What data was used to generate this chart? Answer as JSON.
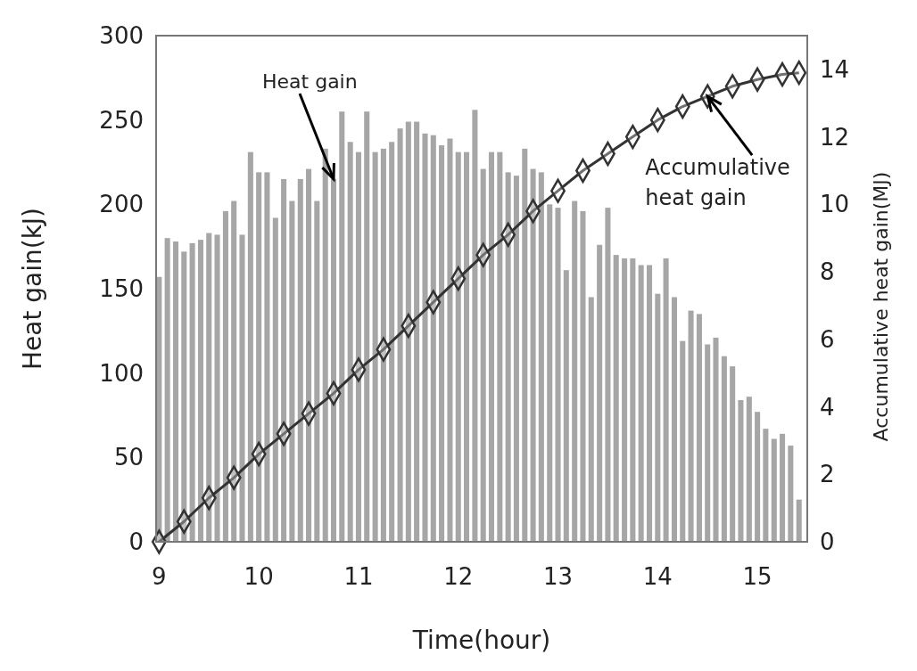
{
  "chart_data": {
    "type": "bar",
    "xlabel": "Time(hour)",
    "ylabel": "Heat gain(kJ)",
    "y2label": "Accumulative heat gain(MJ)",
    "xlim": [
      8.97,
      15.5
    ],
    "xticks": [
      9,
      10,
      11,
      12,
      13,
      14,
      15
    ],
    "ylim": [
      0,
      300
    ],
    "yticks": [
      0,
      50,
      100,
      150,
      200,
      250,
      300
    ],
    "y2lim": [
      0,
      15
    ],
    "y2ticks": [
      0,
      2,
      4,
      6,
      8,
      10,
      12,
      14
    ],
    "grid": false,
    "annotations": [
      {
        "text": "Heat gain",
        "x": 10.75,
        "y": 215
      },
      {
        "text": "Accumulative heat gain",
        "x": 14.5,
        "y": 264
      }
    ],
    "series": [
      {
        "color": "#a6a6a6",
        "x": [
          9,
          9.083,
          9.167,
          9.25,
          9.333,
          9.417,
          9.5,
          9.583,
          9.667,
          9.75,
          9.833,
          9.917,
          10,
          10.083,
          10.167,
          10.25,
          10.333,
          10.417,
          10.5,
          10.583,
          10.667,
          10.75,
          10.833,
          10.917,
          11,
          11.083,
          11.167,
          11.25,
          11.333,
          11.417,
          11.5,
          11.583,
          11.667,
          11.75,
          11.833,
          11.917,
          12,
          12.083,
          12.167,
          12.25,
          12.333,
          12.417,
          12.5,
          12.583,
          12.667,
          12.75,
          12.833,
          12.917,
          13,
          13.083,
          13.167,
          13.25,
          13.333,
          13.417,
          13.5,
          13.583,
          13.667,
          13.75,
          13.833,
          13.917,
          14,
          14.083,
          14.167,
          14.25,
          14.333,
          14.417,
          14.5,
          14.583,
          14.667,
          14.75,
          14.833,
          14.917,
          15,
          15.083,
          15.167,
          15.25,
          15.333,
          15.417
        ],
        "values": [
          157,
          180,
          178,
          172,
          177,
          179,
          183,
          182,
          196,
          202,
          182,
          231,
          219,
          219,
          192,
          215,
          202,
          215,
          221,
          202,
          233,
          215,
          255,
          237,
          231,
          255,
          231,
          233,
          237,
          245,
          249,
          249,
          242,
          241,
          235,
          239,
          231,
          231,
          256,
          221,
          231,
          231,
          219,
          217,
          233,
          221,
          219,
          200,
          198,
          161,
          202,
          196,
          145,
          176,
          198,
          170,
          168,
          168,
          164,
          164,
          147,
          168,
          145,
          119,
          137,
          135,
          117,
          121,
          110,
          104,
          84,
          86,
          77,
          67,
          61,
          64,
          57,
          25
        ]
      },
      {
        "type": "line",
        "axis": "y2",
        "color": "#333333",
        "marker": "diamond",
        "line_style": "solid",
        "x": [
          9,
          9.25,
          9.5,
          9.75,
          10,
          10.25,
          10.5,
          10.75,
          11,
          11.25,
          11.5,
          11.75,
          12,
          12.25,
          12.5,
          12.75,
          13,
          13.25,
          13.5,
          13.75,
          14,
          14.25,
          14.5,
          14.75,
          15,
          15.25,
          15.417
        ],
        "values": [
          0,
          0.6,
          1.3,
          1.9,
          2.6,
          3.2,
          3.8,
          4.4,
          5.1,
          5.7,
          6.4,
          7.1,
          7.8,
          8.5,
          9.1,
          9.8,
          10.4,
          11.0,
          11.5,
          12.0,
          12.5,
          12.9,
          13.2,
          13.5,
          13.7,
          13.85,
          13.9
        ]
      }
    ]
  }
}
